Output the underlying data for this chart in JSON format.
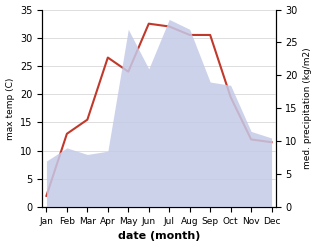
{
  "months": [
    "Jan",
    "Feb",
    "Mar",
    "Apr",
    "May",
    "Jun",
    "Jul",
    "Aug",
    "Sep",
    "Oct",
    "Nov",
    "Dec"
  ],
  "x": [
    0,
    1,
    2,
    3,
    4,
    5,
    6,
    7,
    8,
    9,
    10,
    11
  ],
  "temp": [
    2.0,
    13.0,
    15.5,
    26.5,
    24.0,
    32.5,
    32.0,
    30.5,
    30.5,
    19.5,
    12.0,
    11.5
  ],
  "precip": [
    7.0,
    9.0,
    8.0,
    8.5,
    27.0,
    21.0,
    28.5,
    27.0,
    19.0,
    18.5,
    11.5,
    10.5
  ],
  "temp_color": "#c0392b",
  "precip_fill_color": "#c5cae8",
  "precip_fill_alpha": 0.85,
  "ylabel_left": "max temp (C)",
  "ylabel_right": "med. precipitation (kg/m2)",
  "xlabel": "date (month)",
  "ylim_left": [
    0,
    35
  ],
  "ylim_right": [
    0,
    30
  ],
  "yticks_left": [
    0,
    5,
    10,
    15,
    20,
    25,
    30,
    35
  ],
  "yticks_right": [
    0,
    5,
    10,
    15,
    20,
    25,
    30
  ],
  "background_color": "#ffffff",
  "grid_color": "#d0d0d0"
}
